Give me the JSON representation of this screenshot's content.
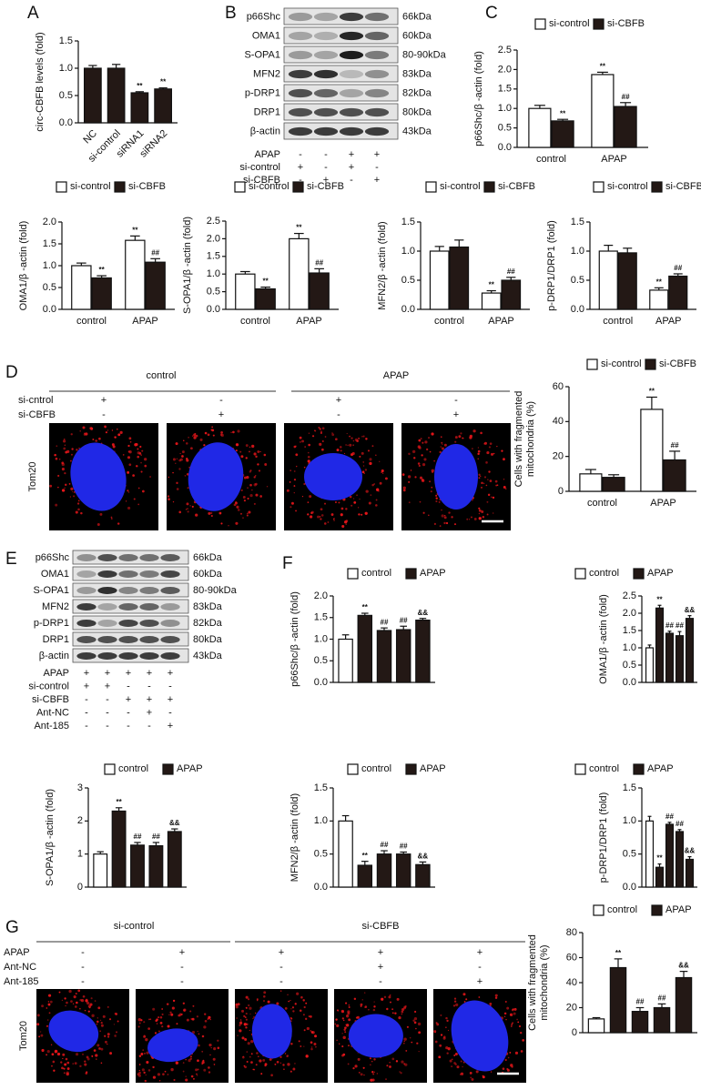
{
  "panels": [
    "A",
    "B",
    "C",
    "D",
    "E",
    "F",
    "G"
  ],
  "blot_B": {
    "proteins": [
      "p66Shc",
      "OMA1",
      "S-OPA1",
      "MFN2",
      "p-DRP1",
      "DRP1",
      "β-actin"
    ],
    "sizes": [
      "66kDa",
      "60kDa",
      "80-90kDa",
      "83kDa",
      "82kDa",
      "80kDa",
      "43kDa"
    ],
    "conditions": [
      {
        "label": "APAP",
        "signs": [
          "-",
          "-",
          "+",
          "+"
        ]
      },
      {
        "label": "si-control",
        "signs": [
          "+",
          "-",
          "+",
          "-"
        ]
      },
      {
        "label": "si-CBFB",
        "signs": [
          "-",
          "+",
          "-",
          "+"
        ]
      }
    ]
  },
  "imaging_D": {
    "groups": [
      "control",
      "APAP"
    ],
    "stain": "Tom20",
    "conditions": [
      {
        "label": "si-cntrol",
        "signs": [
          "+",
          "-",
          "+",
          "-"
        ]
      },
      {
        "label": "si-CBFB",
        "signs": [
          "-",
          "+",
          "-",
          "+"
        ]
      }
    ]
  },
  "blot_E": {
    "proteins": [
      "p66Shc",
      "OMA1",
      "S-OPA1",
      "MFN2",
      "p-DRP1",
      "DRP1",
      "β-actin"
    ],
    "sizes": [
      "66kDa",
      "60kDa",
      "80-90kDa",
      "83kDa",
      "82kDa",
      "80kDa",
      "43kDa"
    ],
    "conditions": [
      {
        "label": "APAP",
        "signs": [
          "+",
          "+",
          "+",
          "+",
          "+"
        ]
      },
      {
        "label": "si-control",
        "signs": [
          "+",
          "+",
          "-",
          "-",
          "-"
        ]
      },
      {
        "label": "si-CBFB",
        "signs": [
          "-",
          "-",
          "+",
          "+",
          "+"
        ]
      },
      {
        "label": "Ant-NC",
        "signs": [
          "-",
          "-",
          "-",
          "+",
          "-"
        ]
      },
      {
        "label": "Ant-185",
        "signs": [
          "-",
          "-",
          "-",
          "-",
          "+"
        ]
      }
    ]
  },
  "imaging_G": {
    "groups": [
      "si-control",
      "si-CBFB"
    ],
    "stain": "Tom20",
    "conditions": [
      {
        "label": "APAP",
        "signs": [
          "-",
          "+",
          "+",
          "+",
          "+"
        ]
      },
      {
        "label": "Ant-NC",
        "signs": [
          "-",
          "-",
          "-",
          "+",
          "-"
        ]
      },
      {
        "label": "Ant-185",
        "signs": [
          "-",
          "-",
          "-",
          "-",
          "+"
        ]
      }
    ]
  },
  "chart_data": [
    {
      "type": "bar",
      "ylabel": [
        "circ-CBFB levels (fold)"
      ],
      "categories": [
        "NC",
        "si-control",
        "siRNA1",
        "siRNA2"
      ],
      "color": "#231815",
      "values": [
        1.0,
        1.0,
        0.55,
        0.62
      ],
      "errors": [
        0.05,
        0.07,
        0.02,
        0.02
      ],
      "significance": [
        null,
        null,
        "**",
        "**"
      ],
      "ylim": [
        0,
        1.5
      ],
      "yticks": [
        {
          "value": 0,
          "label": "0.0"
        },
        0.5,
        {
          "value": 1,
          "label": "1.0"
        },
        1.5
      ]
    },
    {
      "type": "bar",
      "ylabel": [
        "p66Shc/β -actin (fold)"
      ],
      "categories": [
        "control",
        "APAP"
      ],
      "series": [
        {
          "name": "si-control",
          "color": "#ffffff",
          "values": [
            1.0,
            1.87
          ],
          "errors": [
            0.08,
            0.06
          ],
          "significance": [
            null,
            "**"
          ]
        },
        {
          "name": "si-CBFB",
          "color": "#231815",
          "values": [
            0.68,
            1.05
          ],
          "errors": [
            0.04,
            0.1
          ],
          "significance": [
            "**",
            "##"
          ]
        }
      ],
      "ylim": [
        0,
        2.5
      ],
      "yticks": [
        {
          "value": 0,
          "label": "0.0"
        },
        0.5,
        {
          "value": 1,
          "label": "1.0"
        },
        1.5,
        {
          "value": 2,
          "label": "2.0"
        },
        2.5
      ]
    },
    {
      "type": "bar",
      "ylabel": [
        "OMA1/β -actin (fold)"
      ],
      "categories": [
        "control",
        "APAP"
      ],
      "series": [
        {
          "name": "si-control",
          "color": "#ffffff",
          "values": [
            1.0,
            1.58
          ],
          "errors": [
            0.06,
            0.1
          ],
          "significance": [
            null,
            "**"
          ]
        },
        {
          "name": "si-CBFB",
          "color": "#231815",
          "values": [
            0.72,
            1.08
          ],
          "errors": [
            0.05,
            0.08
          ],
          "significance": [
            "**",
            "##"
          ]
        }
      ],
      "ylim": [
        0,
        2
      ],
      "yticks": [
        {
          "value": 0,
          "label": "0.0"
        },
        0.5,
        {
          "value": 1,
          "label": "1.0"
        },
        1.5,
        {
          "value": 2,
          "label": "2.0"
        }
      ]
    },
    {
      "type": "bar",
      "ylabel": [
        "S-OPA1/β -actin (fold)"
      ],
      "categories": [
        "control",
        "APAP"
      ],
      "series": [
        {
          "name": "si-control",
          "color": "#ffffff",
          "values": [
            1.0,
            2.0
          ],
          "errors": [
            0.07,
            0.15
          ],
          "significance": [
            null,
            "**"
          ]
        },
        {
          "name": "si-CBFB",
          "color": "#231815",
          "values": [
            0.58,
            1.03
          ],
          "errors": [
            0.05,
            0.12
          ],
          "significance": [
            "**",
            "##"
          ]
        }
      ],
      "ylim": [
        0,
        2.5
      ],
      "yticks": [
        {
          "value": 0,
          "label": "0.0"
        },
        0.5,
        {
          "value": 1,
          "label": "1.0"
        },
        1.5,
        {
          "value": 2,
          "label": "2.0"
        },
        2.5
      ]
    },
    {
      "type": "bar",
      "ylabel": [
        "MFN2/β -actin (fold)"
      ],
      "categories": [
        "control",
        "APAP"
      ],
      "series": [
        {
          "name": "si-control",
          "color": "#ffffff",
          "values": [
            1.0,
            0.28
          ],
          "errors": [
            0.08,
            0.04
          ],
          "significance": [
            null,
            "**"
          ]
        },
        {
          "name": "si-CBFB",
          "color": "#231815",
          "values": [
            1.07,
            0.5
          ],
          "errors": [
            0.12,
            0.05
          ],
          "significance": [
            null,
            "##"
          ]
        }
      ],
      "ylim": [
        0,
        1.5
      ],
      "yticks": [
        {
          "value": 0,
          "label": "0.0"
        },
        0.5,
        {
          "value": 1,
          "label": "1.0"
        },
        1.5
      ]
    },
    {
      "type": "bar",
      "ylabel": [
        "p-DRP1/DRP1 (fold)"
      ],
      "categories": [
        "control",
        "APAP"
      ],
      "series": [
        {
          "name": "si-control",
          "color": "#ffffff",
          "values": [
            1.0,
            0.33
          ],
          "errors": [
            0.1,
            0.04
          ],
          "significance": [
            null,
            "**"
          ]
        },
        {
          "name": "si-CBFB",
          "color": "#231815",
          "values": [
            0.97,
            0.57
          ],
          "errors": [
            0.08,
            0.04
          ],
          "significance": [
            null,
            "##"
          ]
        }
      ],
      "ylim": [
        0,
        1.5
      ],
      "yticks": [
        {
          "value": 0,
          "label": "0.0"
        },
        0.5,
        {
          "value": 1,
          "label": "1.0"
        },
        1.5
      ]
    },
    {
      "type": "bar",
      "ylabel": [
        "Cells with fragmented",
        "mitochondria (%)"
      ],
      "categories": [
        "control",
        "APAP"
      ],
      "series": [
        {
          "name": "si-control",
          "color": "#ffffff",
          "values": [
            10,
            47
          ],
          "errors": [
            2.5,
            7
          ],
          "significance": [
            null,
            "**"
          ]
        },
        {
          "name": "si-CBFB",
          "color": "#231815",
          "values": [
            8,
            18
          ],
          "errors": [
            1.5,
            5
          ],
          "significance": [
            null,
            "##"
          ]
        }
      ],
      "ylim": [
        0,
        60
      ],
      "yticks": [
        0,
        20,
        40,
        60
      ]
    },
    {
      "type": "bar",
      "ylabel": [
        "p66Shc/β -actin (fold)"
      ],
      "categories": [
        null,
        null,
        null,
        null,
        null
      ],
      "series": [
        {
          "name": "control",
          "color": "#ffffff",
          "values": [
            1.0,
            null,
            null,
            null,
            null
          ],
          "errors": [
            0.1,
            null,
            null,
            null,
            null
          ],
          "significance": [
            null,
            null,
            null,
            null,
            null
          ]
        },
        {
          "name": "APAP",
          "color": "#231815",
          "values": [
            null,
            1.55,
            1.2,
            1.22,
            1.44
          ],
          "errors": [
            null,
            0.05,
            0.06,
            0.08,
            0.04
          ],
          "significance": [
            null,
            "**",
            "##",
            "##",
            "&&"
          ]
        }
      ],
      "ylim": [
        0,
        2
      ],
      "yticks": [
        {
          "value": 0,
          "label": "0.0"
        },
        0.5,
        {
          "value": 1,
          "label": "1.0"
        },
        1.5,
        {
          "value": 2,
          "label": "2.0"
        }
      ]
    },
    {
      "type": "bar",
      "ylabel": [
        "OMA1/β -actin (fold)"
      ],
      "categories": [
        null,
        null,
        null,
        null,
        null
      ],
      "series": [
        {
          "name": "control",
          "color": "#ffffff",
          "values": [
            1.0,
            null,
            null,
            null,
            null
          ],
          "errors": [
            0.08,
            null,
            null,
            null,
            null
          ],
          "significance": [
            null,
            null,
            null,
            null,
            null
          ]
        },
        {
          "name": "APAP",
          "color": "#231815",
          "values": [
            null,
            2.15,
            1.42,
            1.35,
            1.85
          ],
          "errors": [
            null,
            0.08,
            0.06,
            0.12,
            0.08
          ],
          "significance": [
            null,
            "**",
            "##",
            "##",
            "&&"
          ]
        }
      ],
      "ylim": [
        0,
        2.5
      ],
      "yticks": [
        {
          "value": 0,
          "label": "0.0"
        },
        0.5,
        {
          "value": 1,
          "label": "1.0"
        },
        1.5,
        {
          "value": 2,
          "label": "2.0"
        },
        2.5
      ]
    },
    {
      "type": "bar",
      "ylabel": [
        "S-OPA1/β -actin (fold)"
      ],
      "categories": [
        null,
        null,
        null,
        null,
        null
      ],
      "series": [
        {
          "name": "control",
          "color": "#ffffff",
          "values": [
            1.0,
            null,
            null,
            null,
            null
          ],
          "errors": [
            0.07,
            null,
            null,
            null,
            null
          ],
          "significance": [
            null,
            null,
            null,
            null,
            null
          ]
        },
        {
          "name": "APAP",
          "color": "#231815",
          "values": [
            null,
            2.3,
            1.27,
            1.25,
            1.68
          ],
          "errors": [
            null,
            0.1,
            0.08,
            0.1,
            0.08
          ],
          "significance": [
            null,
            "**",
            "##",
            "##",
            "&&"
          ]
        }
      ],
      "ylim": [
        0,
        3
      ],
      "yticks": [
        0,
        1,
        2,
        3
      ]
    },
    {
      "type": "bar",
      "ylabel": [
        "MFN2/β -actin (fold)"
      ],
      "categories": [
        null,
        null,
        null,
        null,
        null
      ],
      "series": [
        {
          "name": "control",
          "color": "#ffffff",
          "values": [
            1.0,
            null,
            null,
            null,
            null
          ],
          "errors": [
            0.08,
            null,
            null,
            null,
            null
          ],
          "significance": [
            null,
            null,
            null,
            null,
            null
          ]
        },
        {
          "name": "APAP",
          "color": "#231815",
          "values": [
            null,
            0.33,
            0.5,
            0.5,
            0.34
          ],
          "errors": [
            null,
            0.06,
            0.05,
            0.03,
            0.04
          ],
          "significance": [
            null,
            "**",
            "##",
            "##",
            "&&"
          ]
        }
      ],
      "ylim": [
        0,
        1.5
      ],
      "yticks": [
        {
          "value": 0,
          "label": "0.0"
        },
        0.5,
        {
          "value": 1,
          "label": "1.0"
        },
        1.5
      ]
    },
    {
      "type": "bar",
      "ylabel": [
        "p-DRP1/DRP1 (fold)"
      ],
      "categories": [
        null,
        null,
        null,
        null,
        null
      ],
      "series": [
        {
          "name": "control",
          "color": "#ffffff",
          "values": [
            1.0,
            null,
            null,
            null,
            null
          ],
          "errors": [
            0.07,
            null,
            null,
            null,
            null
          ],
          "significance": [
            null,
            null,
            null,
            null,
            null
          ]
        },
        {
          "name": "APAP",
          "color": "#231815",
          "values": [
            null,
            0.3,
            0.95,
            0.84,
            0.42
          ],
          "errors": [
            null,
            0.05,
            0.03,
            0.03,
            0.04
          ],
          "significance": [
            null,
            "**",
            "##",
            "##",
            "&&"
          ]
        }
      ],
      "ylim": [
        0,
        1.5
      ],
      "yticks": [
        {
          "value": 0,
          "label": "0.0"
        },
        0.5,
        {
          "value": 1,
          "label": "1.0"
        },
        1.5
      ]
    },
    {
      "type": "bar",
      "ylabel": [
        "Cells with fragmented",
        "mitochondria (%)"
      ],
      "categories": [
        null,
        null,
        null,
        null,
        null
      ],
      "series": [
        {
          "name": "control",
          "color": "#ffffff",
          "values": [
            11,
            null,
            null,
            null,
            null
          ],
          "errors": [
            1,
            null,
            null,
            null,
            null
          ],
          "significance": [
            null,
            null,
            null,
            null,
            null
          ]
        },
        {
          "name": "APAP",
          "color": "#231815",
          "values": [
            null,
            52,
            17,
            20,
            44
          ],
          "errors": [
            null,
            7,
            3,
            3,
            5
          ],
          "significance": [
            null,
            "**",
            "##",
            "##",
            "&&"
          ]
        }
      ],
      "ylim": [
        0,
        80
      ],
      "yticks": [
        0,
        20,
        40,
        60,
        80
      ]
    }
  ]
}
